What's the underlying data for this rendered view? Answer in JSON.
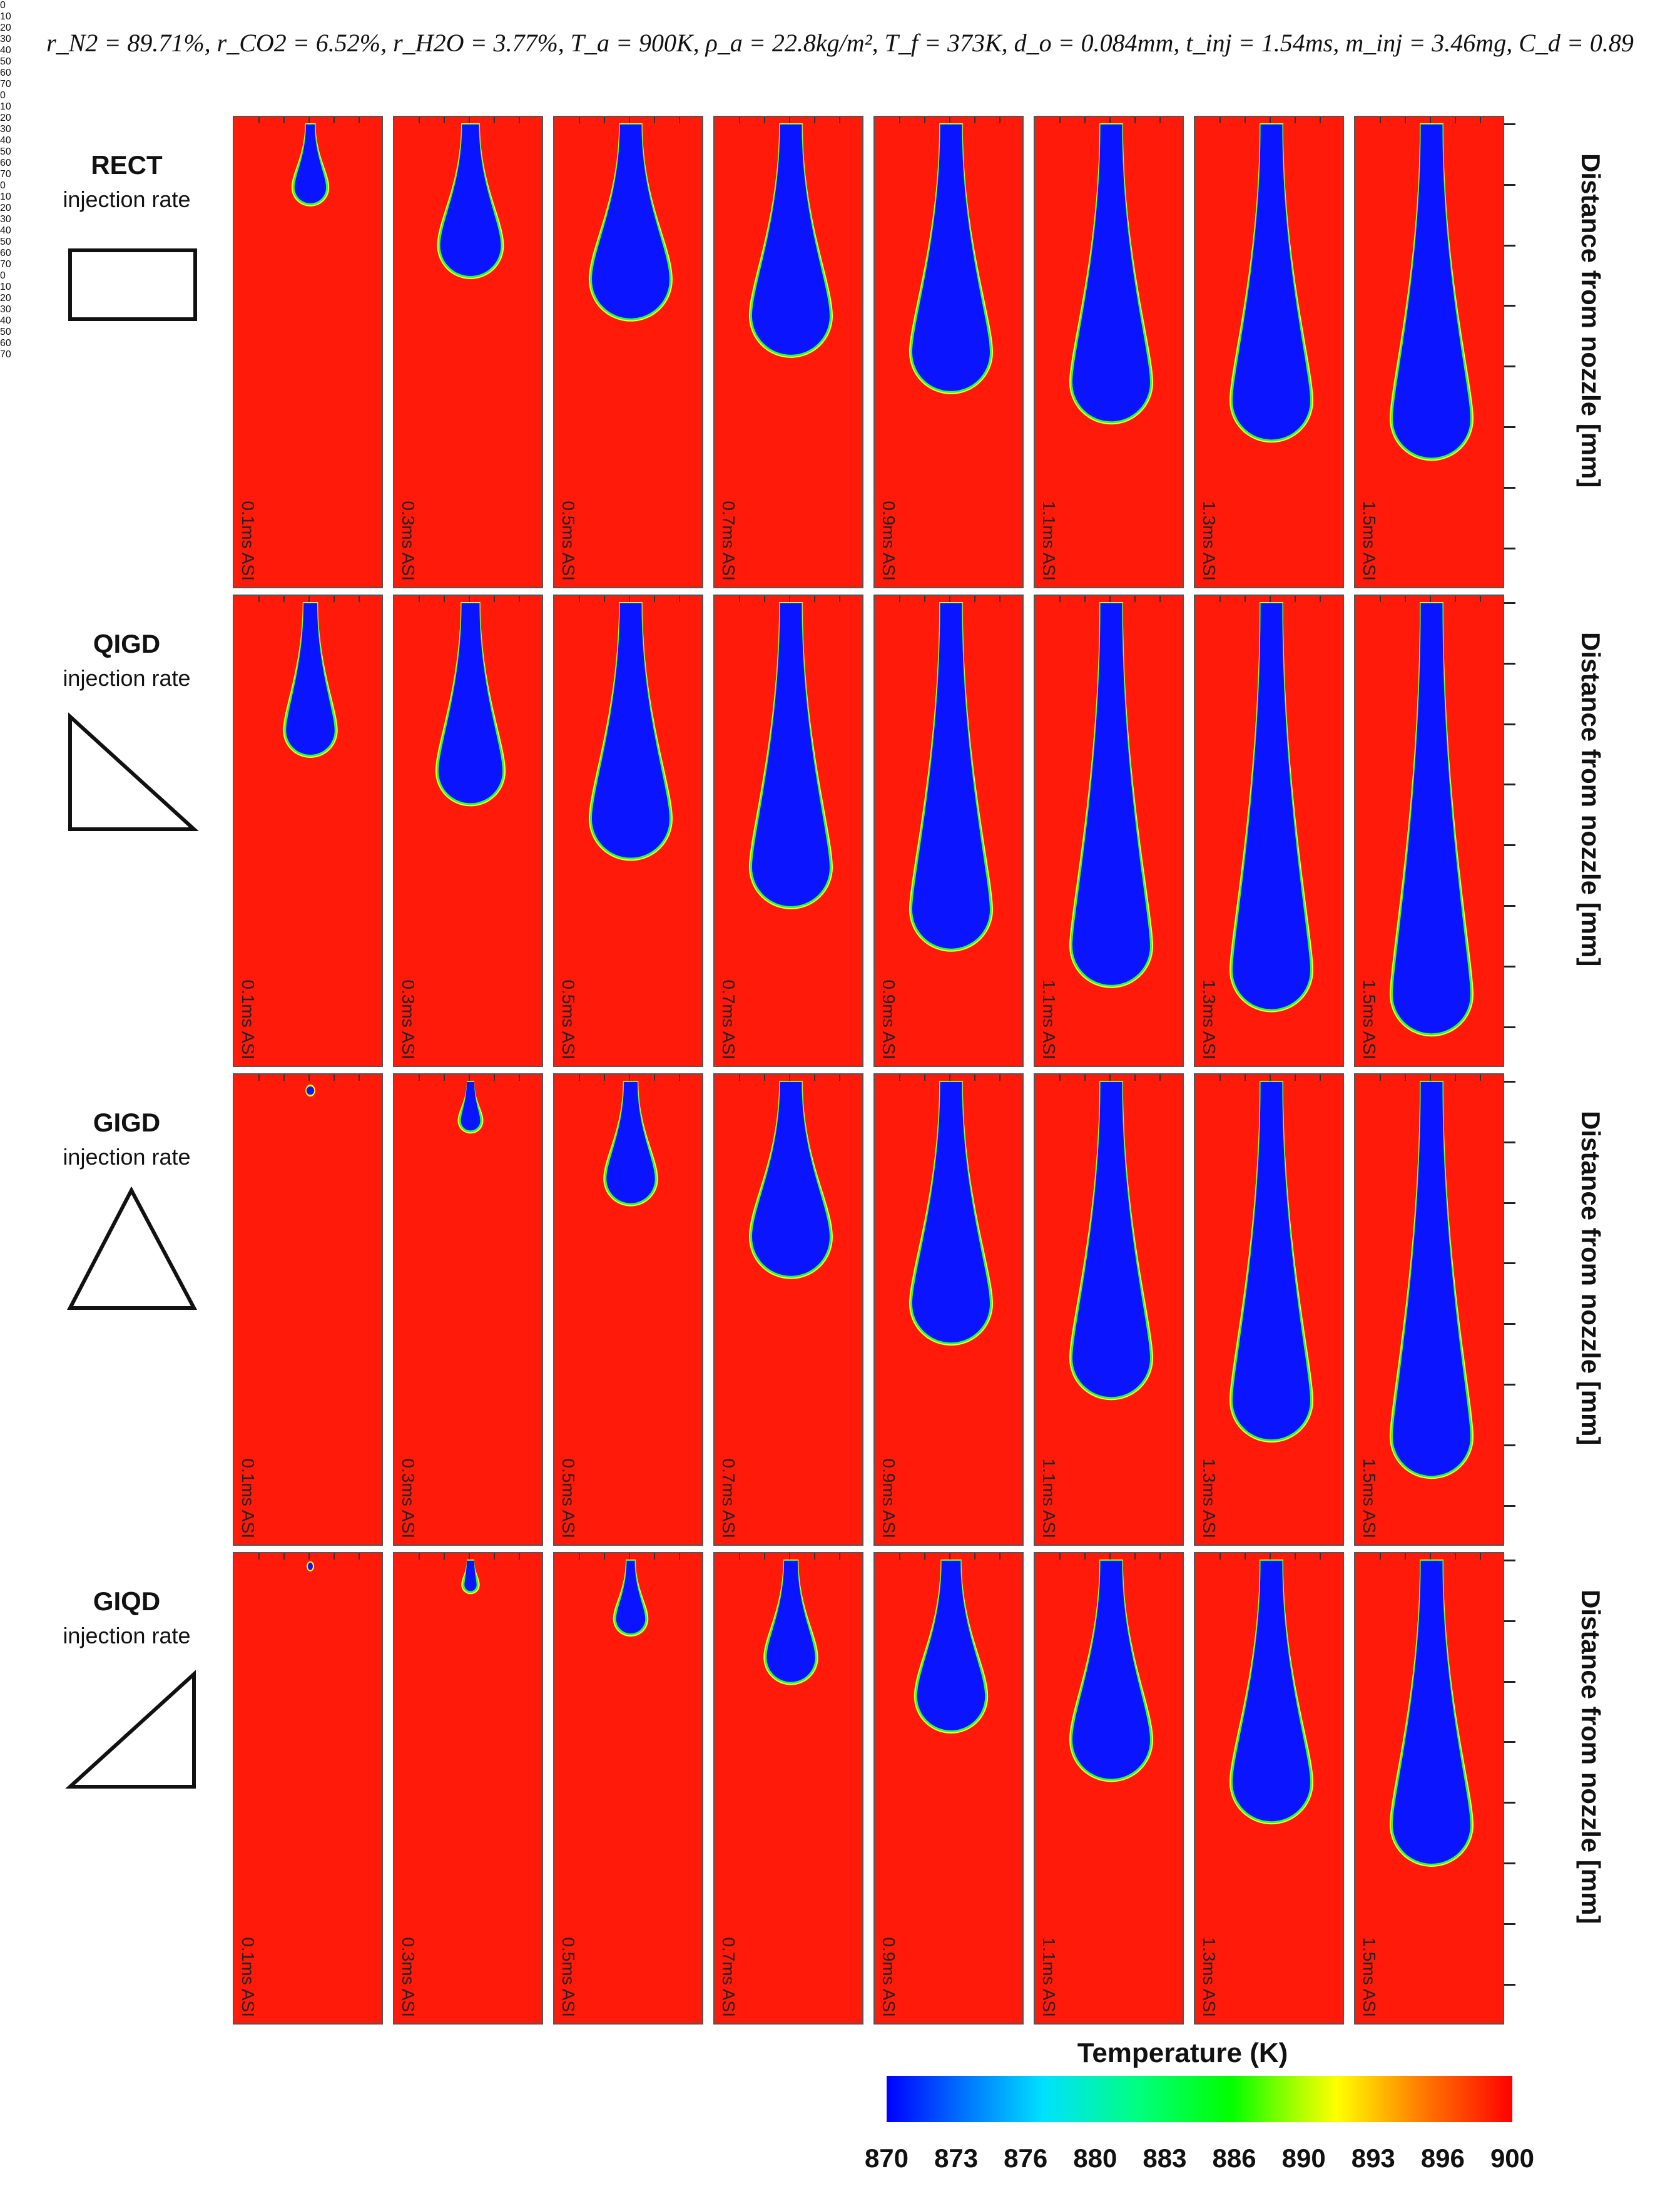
{
  "header": "r_N2 = 89.71%, r_CO2 = 6.52%, r_H2O = 3.77%, T_a = 900K, ρ_a = 22.8kg/m², T_f = 373K, d_o = 0.084mm, t_inj = 1.54ms, m_inj = 3.46mg, C_d = 0.89",
  "rows": [
    {
      "name": "RECT",
      "sub": "injection rate",
      "shape": "rectangle-icon"
    },
    {
      "name": "QIGD",
      "sub": "injection rate",
      "shape": "right-triangle-falling-icon"
    },
    {
      "name": "GIGD",
      "sub": "injection rate",
      "shape": "isosceles-triangle-icon"
    },
    {
      "name": "GIQD",
      "sub": "injection rate",
      "shape": "right-triangle-rising-icon"
    }
  ],
  "times": [
    "0.1ms ASI",
    "0.3ms ASI",
    "0.5ms ASI",
    "0.7ms ASI",
    "0.9ms ASI",
    "1.1ms ASI",
    "1.3ms ASI",
    "1.5ms ASI"
  ],
  "axis": {
    "title": "Distance from nozzle [mm]",
    "ticks": [
      "0",
      "10",
      "20",
      "30",
      "40",
      "50",
      "60",
      "70"
    ]
  },
  "colorbar": {
    "title": "Temperature (K)",
    "ticks": [
      "870",
      "873",
      "876",
      "880",
      "883",
      "886",
      "890",
      "893",
      "896",
      "900"
    ]
  },
  "penetration_mm": [
    [
      13,
      25,
      32,
      38,
      44,
      49,
      52,
      55
    ],
    [
      25,
      33,
      42,
      50,
      57,
      63,
      67,
      71
    ],
    [
      2,
      8,
      20,
      32,
      43,
      52,
      59,
      65
    ],
    [
      1,
      5,
      12,
      20,
      28,
      36,
      43,
      50
    ]
  ]
}
